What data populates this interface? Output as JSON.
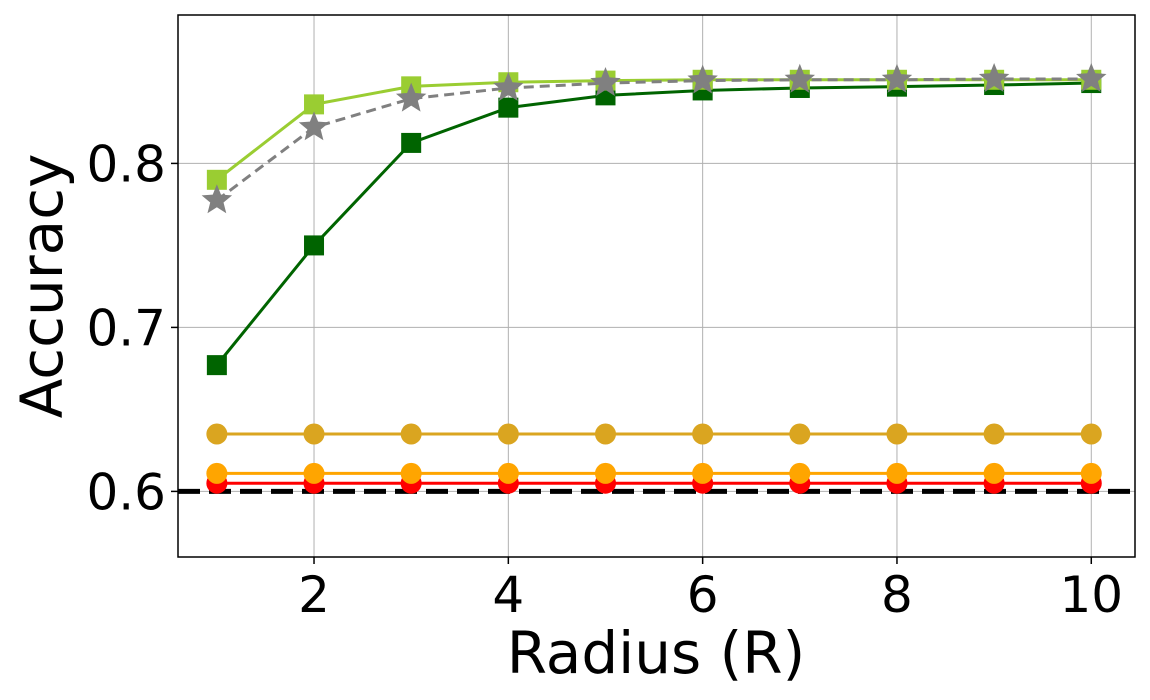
{
  "chart_data": {
    "type": "line",
    "xlabel": "Radius (R)",
    "ylabel": "Accuracy",
    "xlim": [
      0.6,
      10.45
    ],
    "ylim": [
      0.56,
      0.8905
    ],
    "x_ticks": [
      2,
      4,
      6,
      8,
      10
    ],
    "y_ticks": [
      0.6,
      0.7,
      0.8
    ],
    "x_tick_labels": [
      "2",
      "4",
      "6",
      "8",
      "10"
    ],
    "y_tick_labels": [
      "0.6",
      "0.7",
      "0.8"
    ],
    "grid": true,
    "x": [
      1,
      2,
      3,
      4,
      5,
      6,
      7,
      8,
      9,
      10
    ],
    "series": [
      {
        "color": "#006400",
        "marker": "square",
        "dash": "solid",
        "values": [
          0.677,
          0.75,
          0.8125,
          0.834,
          0.8415,
          0.8445,
          0.846,
          0.8468,
          0.8478,
          0.849
        ]
      },
      {
        "color": "#9acd32",
        "marker": "square",
        "dash": "solid",
        "values": [
          0.79,
          0.836,
          0.847,
          0.8495,
          0.8505,
          0.851,
          0.851,
          0.851,
          0.851,
          0.851
        ]
      },
      {
        "color": "#808080",
        "marker": "star",
        "dash": "dashed",
        "values": [
          0.7775,
          0.822,
          0.8395,
          0.846,
          0.849,
          0.8505,
          0.851,
          0.851,
          0.8515,
          0.8515
        ]
      },
      {
        "color": "#daa520",
        "marker": "circle",
        "dash": "solid",
        "values": [
          0.635,
          0.635,
          0.635,
          0.635,
          0.635,
          0.635,
          0.635,
          0.635,
          0.635,
          0.635
        ]
      },
      {
        "color": "#ffa500",
        "marker": "circle",
        "dash": "solid",
        "values": [
          0.611,
          0.611,
          0.611,
          0.611,
          0.611,
          0.611,
          0.611,
          0.611,
          0.611,
          0.611
        ]
      },
      {
        "color": "#ff0000",
        "marker": "circle",
        "dash": "solid",
        "values": [
          0.605,
          0.605,
          0.605,
          0.605,
          0.605,
          0.605,
          0.605,
          0.605,
          0.605,
          0.605
        ]
      }
    ],
    "reference_line": {
      "y": 0.6,
      "color": "#000000",
      "dash": "dashed"
    }
  }
}
